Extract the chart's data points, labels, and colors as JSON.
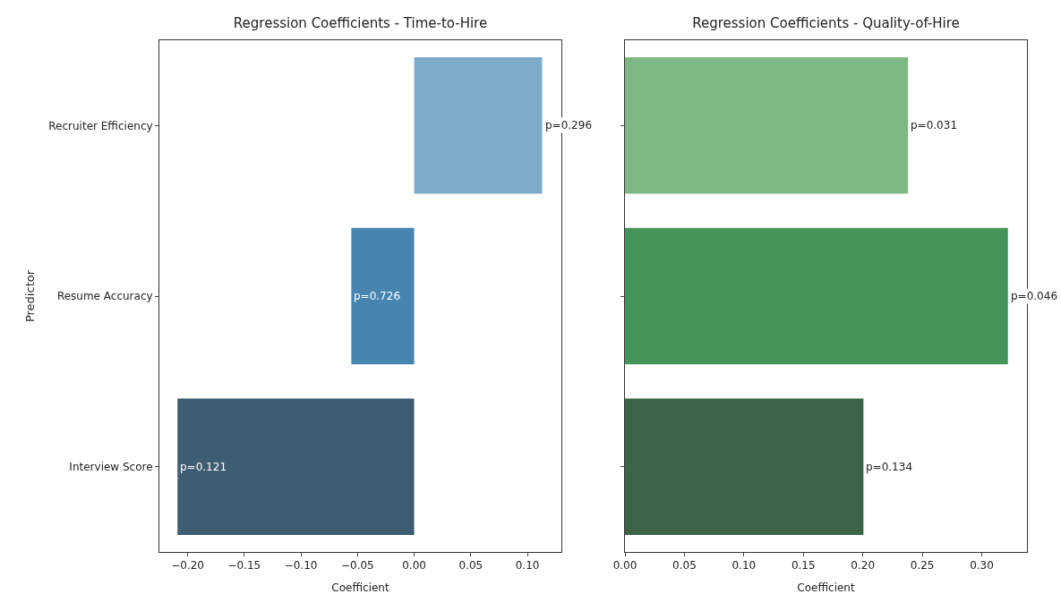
{
  "chart_data": [
    {
      "type": "bar",
      "orientation": "horizontal",
      "title": "Regression Coefficients - Time-to-Hire",
      "xlabel": "Coefficient",
      "ylabel": "Predictor",
      "categories": [
        "Recruiter Efficiency",
        "Resume Accuracy",
        "Interview Score"
      ],
      "values": [
        0.113,
        -0.0555,
        -0.209
      ],
      "colors": [
        "#7eaac9",
        "#4884b0",
        "#3d5d73"
      ],
      "annotations": [
        {
          "text": "p=0.296",
          "x": 0.113,
          "y": "Recruiter Efficiency"
        },
        {
          "text": "p=0.726",
          "x": -0.0555,
          "y": "Resume Accuracy"
        },
        {
          "text": "p=0.121",
          "x": -0.209,
          "y": "Interview Score"
        }
      ],
      "xlim": [
        -0.225,
        0.13
      ],
      "xticks": [
        {
          "value": -0.2,
          "label": "−0.20"
        },
        {
          "value": -0.15,
          "label": "−0.15"
        },
        {
          "value": -0.1,
          "label": "−0.10"
        },
        {
          "value": -0.05,
          "label": "−0.05"
        },
        {
          "value": 0,
          "label": "0.00"
        },
        {
          "value": 0.05,
          "label": "0.05"
        },
        {
          "value": 0.1,
          "label": "0.10"
        }
      ],
      "grid": false
    },
    {
      "type": "bar",
      "orientation": "horizontal",
      "title": "Regression Coefficients - Quality-of-Hire",
      "xlabel": "Coefficient",
      "categories": [
        null,
        null,
        null
      ],
      "values": [
        0.238,
        0.322,
        0.2005
      ],
      "colors": [
        "#7db784",
        "#45955a",
        "#3b6448"
      ],
      "annotations": [
        {
          "text": "p=0.031",
          "x": 0.238
        },
        {
          "text": "p=0.046",
          "x": 0.322
        },
        {
          "text": "p=0.134",
          "x": 0.2005
        }
      ],
      "xlim": [
        0,
        0.338
      ],
      "xticks": [
        {
          "value": 0,
          "label": "0.00"
        },
        {
          "value": 0.05,
          "label": "0.05"
        },
        {
          "value": 0.1,
          "label": "0.10"
        },
        {
          "value": 0.15,
          "label": "0.15"
        },
        {
          "value": 0.2,
          "label": "0.20"
        },
        {
          "value": 0.25,
          "label": "0.25"
        },
        {
          "value": 0.3,
          "label": "0.30"
        }
      ],
      "tick_labels": "x",
      "grid": false
    }
  ]
}
